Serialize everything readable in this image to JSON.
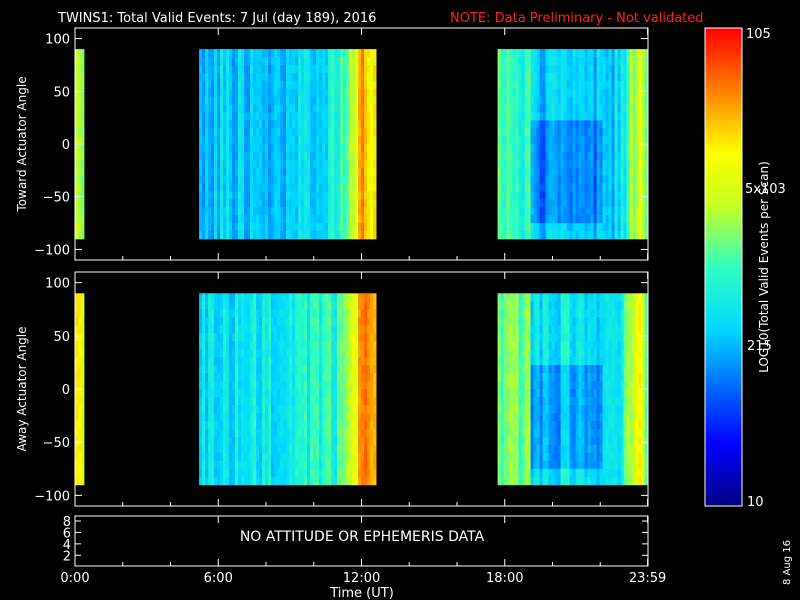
{
  "header": {
    "title": "TWINS1: Total Valid Events:  7 Jul (day 189), 2016",
    "note": "NOTE: Data Preliminary - Not validated"
  },
  "panels": {
    "toward": {
      "ylabel": "Toward Actuator Angle"
    },
    "away": {
      "ylabel": "Away Actuator Angle"
    },
    "ephem": {
      "message": "NO ATTITUDE OR EPHEMERIS DATA"
    }
  },
  "xaxis": {
    "label": "Time (UT)",
    "ticks": [
      "0:00",
      "6:00",
      "12:00",
      "18:00",
      "23:59"
    ]
  },
  "colorbar": {
    "label": "LOG10(Total Valid Events per Scan)",
    "ticks": [
      "10",
      "215",
      "5x103",
      "105"
    ]
  },
  "footer": {
    "date": "8 Aug 16"
  },
  "chart_data": [
    {
      "type": "heatmap",
      "title": "TWINS1: Total Valid Events:  7 Jul (day 189), 2016",
      "ylabel": "Toward Actuator Angle",
      "xlabel": "Time (UT)",
      "x_ticks": [
        "0:00",
        "6:00",
        "12:00",
        "18:00",
        "23:59"
      ],
      "y_ticks": [
        100,
        50,
        0,
        -50,
        -100
      ],
      "xlim_hours": [
        0,
        24
      ],
      "ylim": [
        -110,
        110
      ],
      "angle_range": [
        -90,
        90
      ],
      "colorscale": "log",
      "colorbar_range": [
        10,
        100000
      ],
      "colorbar_ticks": [
        10,
        215,
        5000,
        100000
      ],
      "data_intervals_hours": [
        [
          0,
          0.3
        ],
        [
          5.2,
          12.5
        ],
        [
          17.7,
          23.9
        ]
      ],
      "level_description": "log10 counts per scan; mostly 2.1-3.3, rising to ~3.8-4.0 near 0:00, ~11:30-12:30 and ~23:30"
    },
    {
      "type": "heatmap",
      "ylabel": "Away Actuator Angle",
      "xlabel": "Time (UT)",
      "x_ticks": [
        "0:00",
        "6:00",
        "12:00",
        "18:00",
        "23:59"
      ],
      "y_ticks": [
        100,
        50,
        0,
        -50,
        -100
      ],
      "xlim_hours": [
        0,
        24
      ],
      "ylim": [
        -110,
        110
      ],
      "angle_range": [
        -90,
        90
      ],
      "colorscale": "log",
      "colorbar_range": [
        10,
        100000
      ],
      "data_intervals_hours": [
        [
          0,
          0.3
        ],
        [
          5.2,
          12.5
        ],
        [
          17.7,
          23.9
        ]
      ],
      "level_description": "log10 counts per scan; mostly 2.3-3.5, rising to ~4.0-4.3 near 0:00, ~11:30-12:30 and ~23:30"
    }
  ]
}
